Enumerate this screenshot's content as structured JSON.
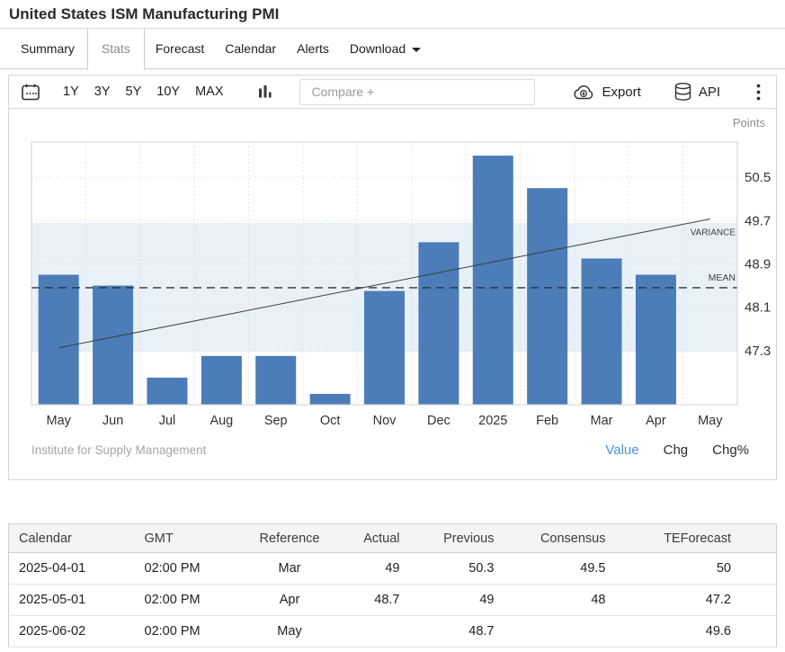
{
  "page": {
    "title": "United States ISM Manufacturing PMI"
  },
  "tabs": [
    {
      "label": "Summary"
    },
    {
      "label": "Stats",
      "active": true
    },
    {
      "label": "Forecast"
    },
    {
      "label": "Calendar"
    },
    {
      "label": "Alerts"
    },
    {
      "label": "Download",
      "has_dropdown": true
    }
  ],
  "toolbar": {
    "ranges": [
      "1Y",
      "3Y",
      "5Y",
      "10Y",
      "MAX"
    ],
    "compare_placeholder": "Compare +",
    "export_label": "Export",
    "api_label": "API"
  },
  "chart_data": {
    "type": "bar",
    "title": "United States ISM Manufacturing PMI",
    "unit_label": "Points",
    "source": "Institute for Supply Management",
    "categories": [
      "May",
      "Jun",
      "Jul",
      "Aug",
      "Sep",
      "Oct",
      "Nov",
      "Dec",
      "2025",
      "Feb",
      "Mar",
      "Apr",
      "May"
    ],
    "values": [
      48.7,
      48.5,
      46.8,
      47.2,
      47.2,
      46.5,
      48.4,
      49.3,
      50.9,
      50.3,
      49,
      48.7,
      null
    ],
    "yticks": [
      47.3,
      48.1,
      48.9,
      49.7,
      50.5
    ],
    "ylim": [
      46.3,
      51.15
    ],
    "grid": true,
    "legend_position": "none",
    "mean": {
      "value": 48.46,
      "label": "MEAN"
    },
    "variance_trend": {
      "start": 47.35,
      "end": 49.73,
      "label": "VARIANCE"
    },
    "band": {
      "low": 47.28,
      "high": 49.66
    },
    "colors": {
      "bar": "#4c7db8",
      "band": "#e9f1f8",
      "mean_line": "#26323e",
      "trend_line": "#3d3d3d",
      "grid": "#dcdcdc"
    }
  },
  "chart_footer": {
    "modes": [
      {
        "label": "Value",
        "active": true
      },
      {
        "label": "Chg"
      },
      {
        "label": "Chg%"
      }
    ],
    "active_color": "#4a90e2"
  },
  "table": {
    "headers": [
      "Calendar",
      "GMT",
      "Reference",
      "Actual",
      "Previous",
      "Consensus",
      "TEForecast"
    ],
    "rows": [
      [
        "2025-04-01",
        "02:00 PM",
        "Mar",
        "49",
        "50.3",
        "49.5",
        "50"
      ],
      [
        "2025-05-01",
        "02:00 PM",
        "Apr",
        "48.7",
        "49",
        "48",
        "47.2"
      ],
      [
        "2025-06-02",
        "02:00 PM",
        "May",
        "",
        "48.7",
        "",
        "49.6"
      ]
    ]
  }
}
